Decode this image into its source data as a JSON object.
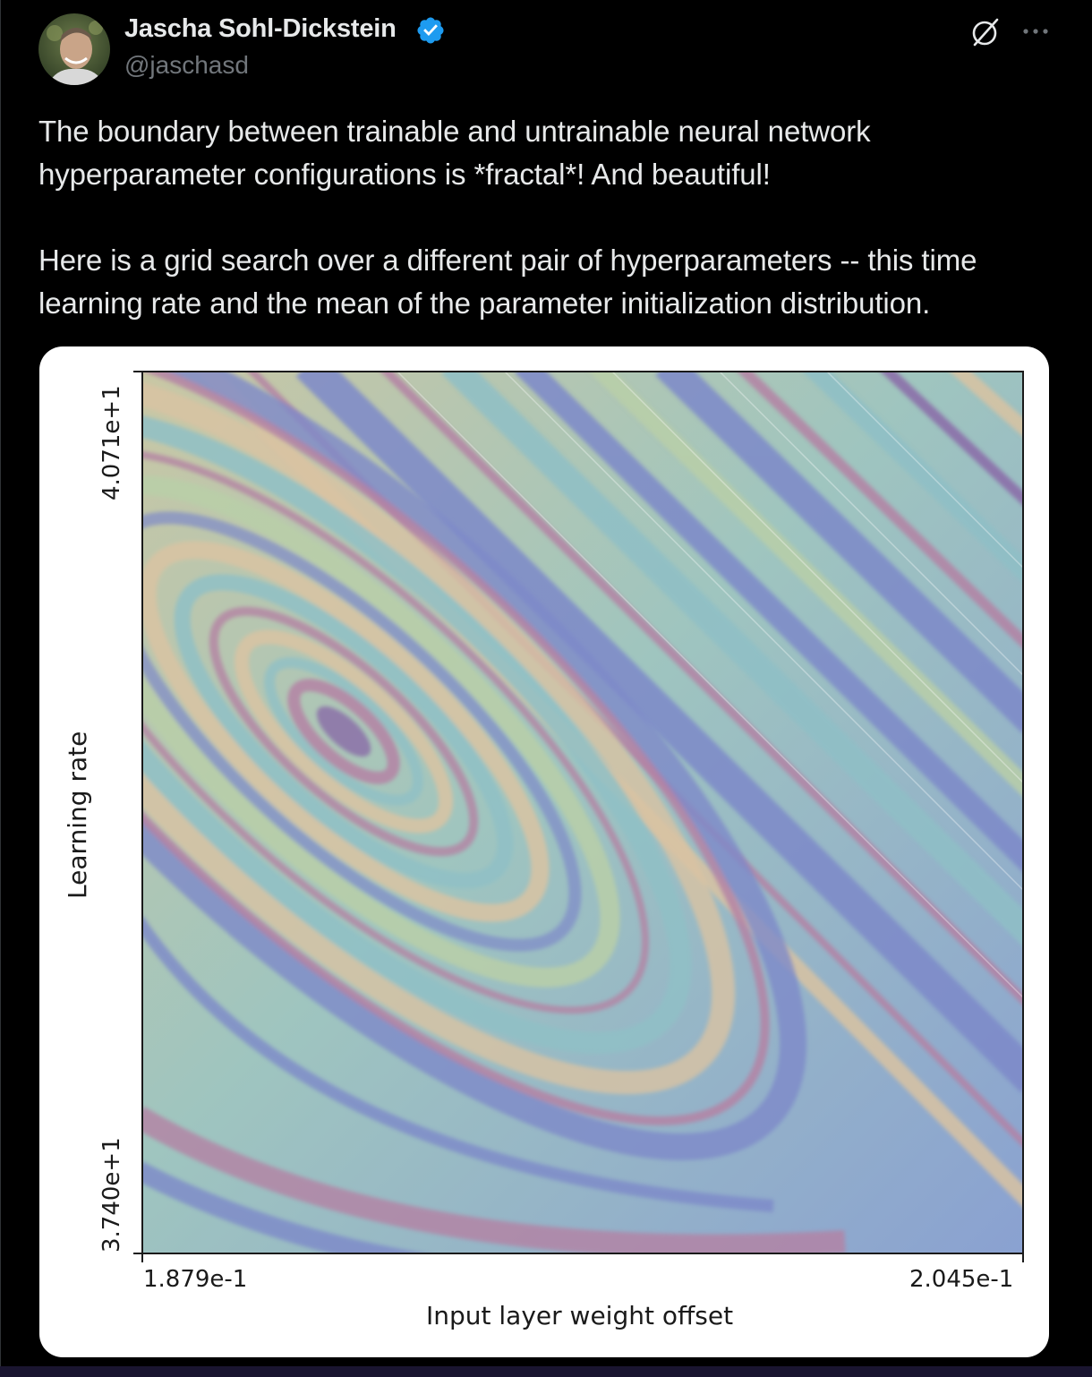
{
  "tweet": {
    "author": {
      "display_name": "Jascha Sohl-Dickstein",
      "handle": "@jaschasd",
      "verified": true,
      "avatar_icon": "profile-photo"
    },
    "header_icons": [
      "grok-icon",
      "more-icon"
    ],
    "text": {
      "paragraph_1": "The boundary between trainable and untrainable neural network hyperparameter configurations is *fractal*! And beautiful!",
      "paragraph_2": "Here is a grid search over a different pair of hyperparameters -- this time learning rate and the mean of the parameter initialization distribution."
    }
  },
  "media": {
    "xlabel": "Input layer weight offset",
    "ylabel": "Learning rate",
    "x_tick_min": "1.879e-1",
    "x_tick_max": "2.045e-1",
    "y_tick_min": "3.740e+1",
    "y_tick_max": "4.071e+1",
    "palette": [
      "#7d89c9",
      "#8fbfc6",
      "#b9cfa8",
      "#d9c3a2",
      "#b482a4",
      "#8a6aa8"
    ]
  },
  "colors": {
    "background": "#000000",
    "text_primary": "#e7e9ea",
    "text_secondary": "#71767b",
    "verified_blue": "#1d9bf0"
  }
}
